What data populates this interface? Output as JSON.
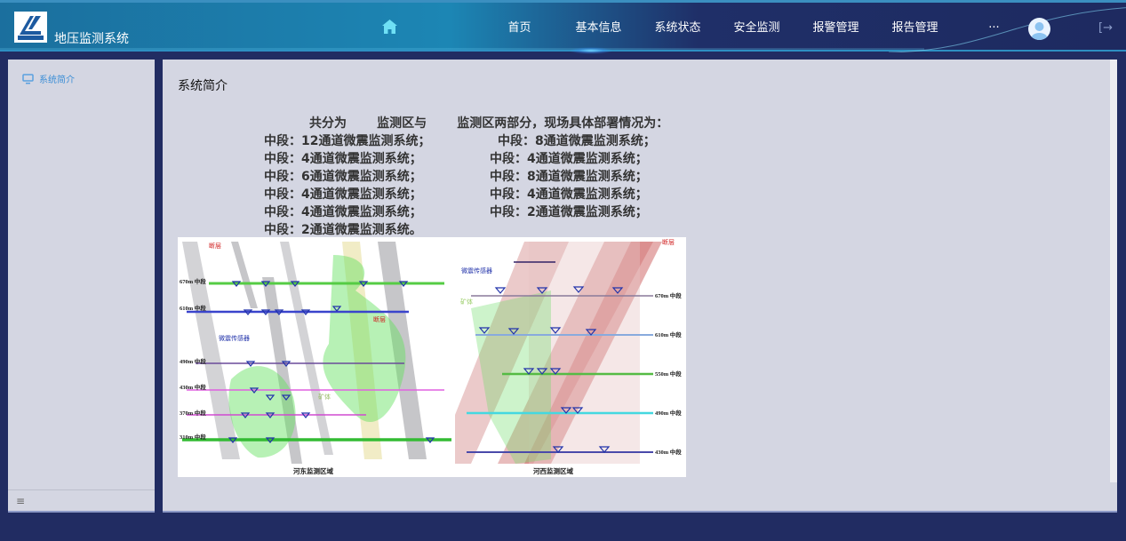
{
  "app": {
    "title": "地压监测系统",
    "logo_text": "CHINALCO"
  },
  "nav": {
    "items": [
      "首页",
      "基本信息",
      "系统状态",
      "安全监测",
      "报警管理",
      "报告管理",
      "···"
    ],
    "icons": [
      "home-icon",
      "avatar-icon",
      "logout-icon"
    ]
  },
  "sidebar": {
    "items": [
      {
        "label": "系统简介",
        "icon": "monitor-icon"
      }
    ],
    "footer_icon": "menu-icon"
  },
  "main": {
    "title": "系统简介",
    "intro": "共分为       监测区与       监测区两部分，现场具体部署情况为：",
    "left_list": [
      "中段：12通道微震监测系统；",
      "中段：4通道微震监测系统；",
      "中段：6通道微震监测系统；",
      "中段：4通道微震监测系统；",
      "中段：4通道微震监测系统；",
      "中段：2通道微震监测系统。"
    ],
    "right_list": [
      "中段：8通道微震监测系统；",
      "中段：4通道微震监测系统；",
      "中段：8通道微震监测系统；",
      "中段：4通道微震监测系统；",
      "中段：2通道微震监测系统；"
    ]
  },
  "figure": {
    "east": {
      "caption": "河东监测区域",
      "levels": [
        "670m 中段",
        "610m 中段",
        "490m 中段",
        "430m 中段",
        "370m 中段",
        "310m 中段"
      ],
      "fault": "断层",
      "sensor": "微震传感器",
      "ore": "矿体"
    },
    "west": {
      "caption": "河西监测区域",
      "levels": [
        "670m 中段",
        "610m 中段",
        "550m 中段",
        "490m 中段",
        "430m 中段"
      ],
      "fault": "断层",
      "sensor": "微震传感器",
      "ore": "矿体"
    }
  },
  "colors": {
    "header_dark": "#1e2a60",
    "header_light": "#1c86b4",
    "body_bg": "#212c62",
    "panel_bg": "#d4d6e2",
    "accent": "#3b8ed6"
  }
}
